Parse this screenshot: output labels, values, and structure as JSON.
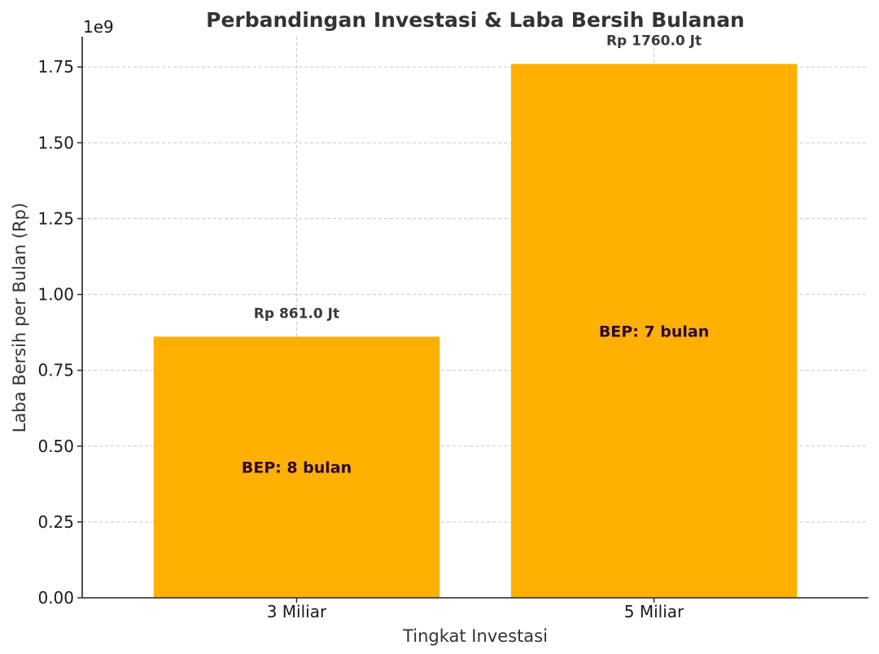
{
  "chart_data": {
    "type": "bar",
    "title": "Perbandingan Investasi & Laba Bersih Bulanan",
    "xlabel": "Tingkat Investasi",
    "ylabel": "Laba Bersih per Bulan (Rp)",
    "y_offset_text": "1e9",
    "categories": [
      "3 Miliar",
      "5 Miliar"
    ],
    "values": [
      861000000,
      1760000000
    ],
    "value_labels": [
      "Rp 861.0 Jt",
      "Rp 1760.0 Jt"
    ],
    "bep_labels": [
      "BEP: 8 bulan",
      "BEP: 7 bulan"
    ],
    "ylim": [
      0,
      1850000000
    ],
    "yticks": [
      0,
      0.25,
      0.5,
      0.75,
      1.0,
      1.25,
      1.5,
      1.75
    ],
    "ytick_labels": [
      "0.00",
      "0.25",
      "0.50",
      "0.75",
      "1.00",
      "1.25",
      "1.50",
      "1.75"
    ],
    "y_multiplier": 1000000000,
    "grid": true,
    "bar_color": "#FFB000"
  }
}
